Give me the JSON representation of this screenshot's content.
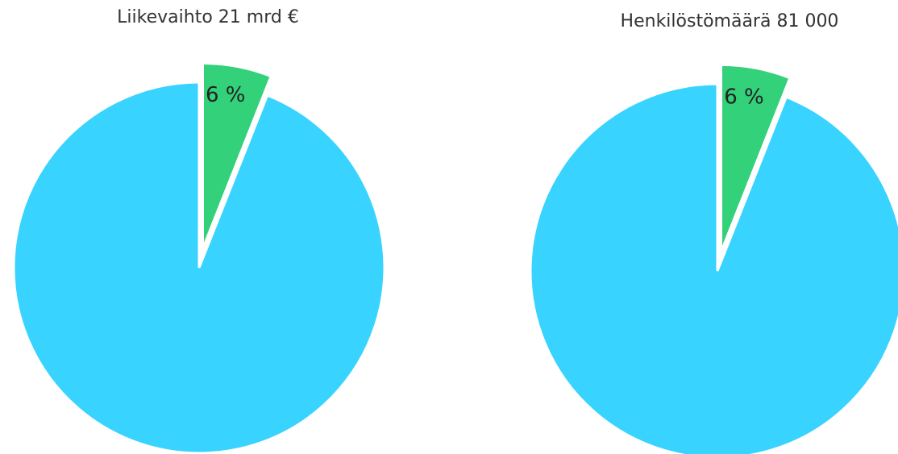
{
  "chart_data": [
    {
      "type": "pie",
      "title": "Liikevaihto 21 mrd €",
      "values": [
        6,
        94
      ],
      "value_labels": [
        "6 %",
        null
      ],
      "colors": [
        "#33d17a",
        "#38d3ff"
      ],
      "exploded": [
        true,
        false
      ]
    },
    {
      "type": "pie",
      "title": "Henkilöstömäärä 81 000",
      "values": [
        6,
        94
      ],
      "value_labels": [
        "6 %",
        null
      ],
      "colors": [
        "#33d17a",
        "#38d3ff"
      ],
      "exploded": [
        true,
        false
      ]
    }
  ]
}
